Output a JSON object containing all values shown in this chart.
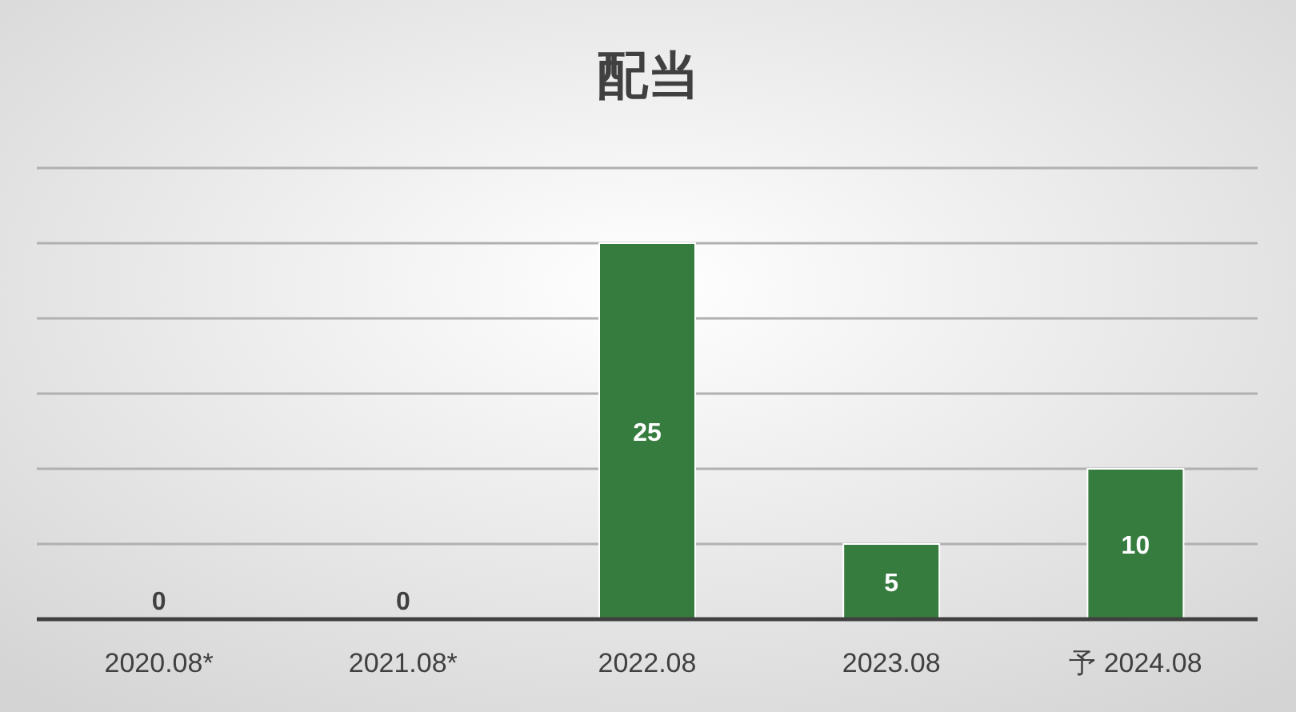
{
  "chart_data": {
    "type": "bar",
    "title": "配当",
    "categories": [
      "2020.08*",
      "2021.08*",
      "2022.08",
      "2023.08",
      "予 2024.08"
    ],
    "values": [
      0,
      0,
      25,
      5,
      10
    ],
    "color": "#367c3f",
    "ylim": [
      0,
      30
    ],
    "yticks": [
      {
        "value": 0,
        "label": null
      },
      {
        "value": 5,
        "label": null
      },
      {
        "value": 10,
        "label": null
      },
      {
        "value": 15,
        "label": null
      },
      {
        "value": 20,
        "label": null
      },
      {
        "value": 25,
        "label": null
      },
      {
        "value": 30,
        "label": null
      }
    ],
    "tick_labels": "x",
    "grid": "y",
    "data_labels": true
  }
}
